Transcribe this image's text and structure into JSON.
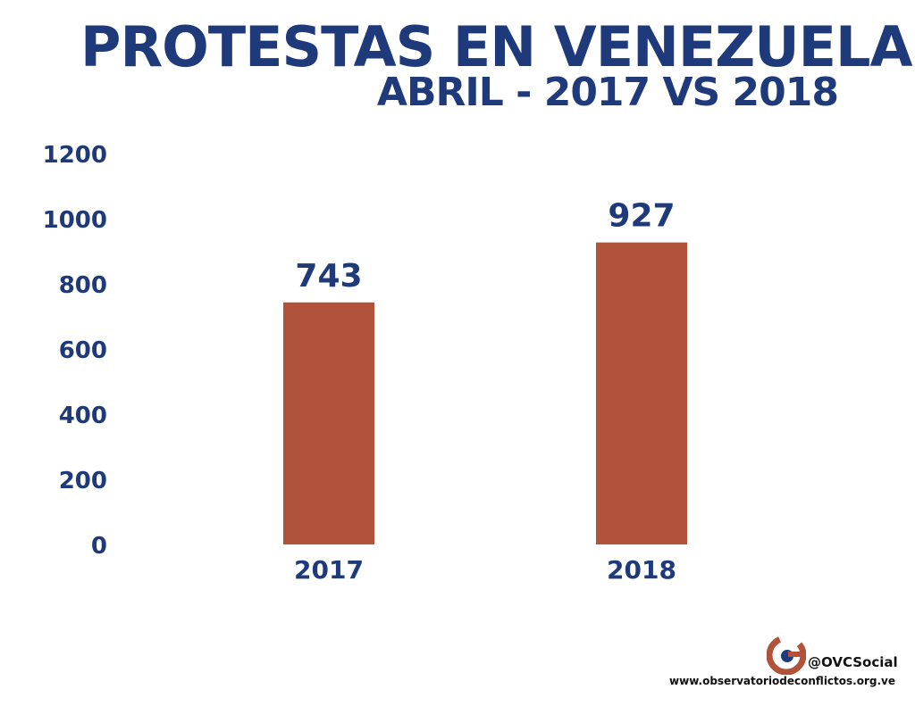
{
  "chart_data": {
    "type": "bar",
    "title": "PROTESTAS EN VENEZUELA",
    "subtitle": "ABRIL - 2017 VS 2018",
    "categories": [
      "2017",
      "2018"
    ],
    "values": [
      743,
      927
    ],
    "data_labels": [
      "743",
      "927"
    ],
    "ylim": [
      0,
      1200
    ],
    "yticks": [
      "0",
      "200",
      "400",
      "600",
      "800",
      "1000",
      "1200"
    ],
    "xlabel": "",
    "ylabel": "",
    "grid": false,
    "bar_color": "#b0533a",
    "text_color": "#1f3a7a"
  },
  "footer": {
    "handle": "@OVCSocial",
    "url": "www.observatoriodeconflictos.org.ve",
    "logo_icon": "ovc-logo-icon"
  }
}
